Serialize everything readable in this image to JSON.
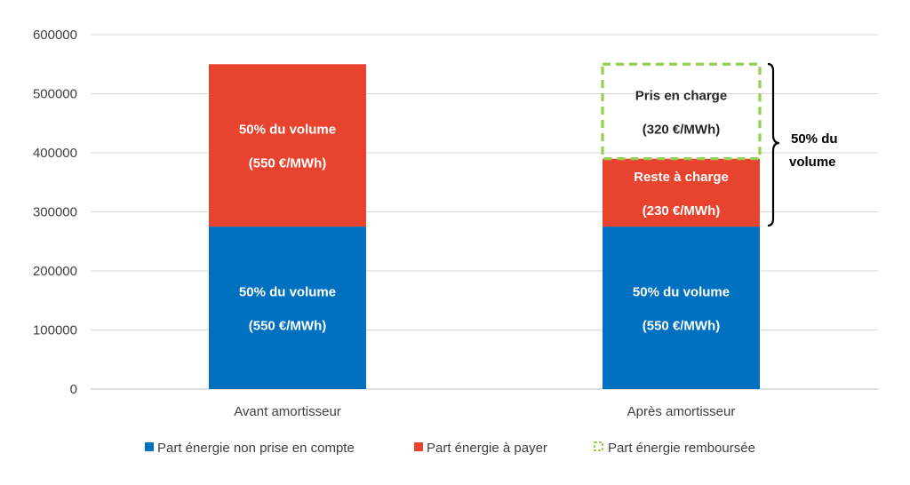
{
  "chart_data": {
    "type": "bar",
    "stacked": true,
    "categories": [
      "Avant amortisseur",
      "Après amortisseur"
    ],
    "series": [
      {
        "name": "Part énergie non prise en compte",
        "color": "#0070C0",
        "values": [
          275000,
          275000
        ]
      },
      {
        "name": "Part énergie à payer",
        "color": "#E8432E",
        "values": [
          275000,
          115000
        ]
      },
      {
        "name": "Part énergie remboursée",
        "color": "#92D050",
        "style": "dashed-outline",
        "values": [
          0,
          160000
        ]
      }
    ],
    "ylim": [
      0,
      600000
    ],
    "yticks": [
      "0",
      "100000",
      "200000",
      "300000",
      "400000",
      "500000",
      "600000"
    ],
    "grid": true,
    "legend_position": "bottom",
    "segment_labels": [
      {
        "category": 0,
        "series": 0,
        "line1": "50% du volume",
        "line2": "(550 €/MWh)"
      },
      {
        "category": 0,
        "series": 1,
        "line1": "50% du volume",
        "line2": "(550 €/MWh)"
      },
      {
        "category": 1,
        "series": 0,
        "line1": "50% du volume",
        "line2": "(550 €/MWh)"
      },
      {
        "category": 1,
        "series": 1,
        "line1": "Reste à charge",
        "line2": "(230 €/MWh)"
      },
      {
        "category": 1,
        "series": 2,
        "line1": "Pris en charge",
        "line2": "(320 €/MWh)"
      }
    ],
    "annotation": {
      "line1": "50% du",
      "line2": "volume"
    }
  }
}
